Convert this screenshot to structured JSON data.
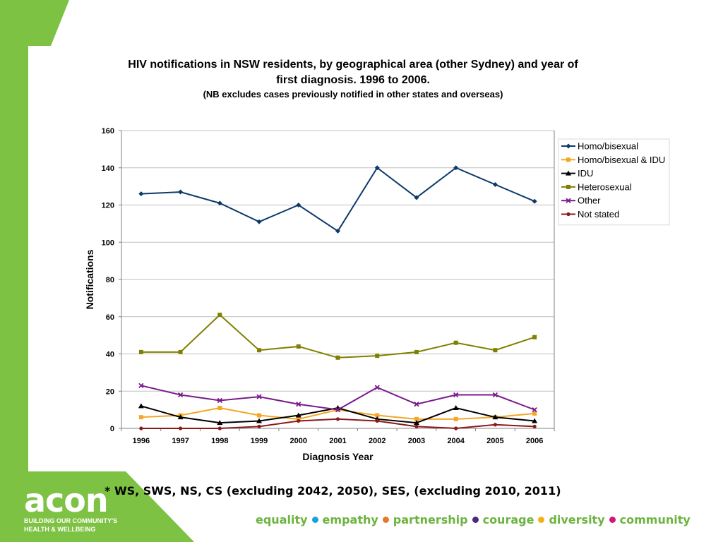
{
  "slide": {
    "title_line1": "HIV notifications in NSW residents, by geographical area (other Sydney) and year of",
    "title_line2": "first diagnosis. 1996 to 2006.",
    "subtitle": "(NB excludes cases previously notified in other states and overseas)",
    "footnote": "* WS, SWS, NS, CS (excluding 2042, 2050), SES, (excluding 2010, 2011)",
    "logo_text": "acon",
    "logo_tagline1": "BUILDING OUR COMMUNITY'S",
    "logo_tagline2": "HEALTH & WELLBEING",
    "values": [
      {
        "word": "equality",
        "dot_color": "#1aa3d9"
      },
      {
        "word": "empathy",
        "dot_color": "#e8772e"
      },
      {
        "word": "partnership",
        "dot_color": "#4b2a7b"
      },
      {
        "word": "courage",
        "dot_color": "#f2b11b"
      },
      {
        "word": "diversity",
        "dot_color": "#d4147a"
      },
      {
        "word": "community",
        "dot_color": null
      }
    ],
    "values_text_color": "#6cb33f",
    "brand_green": "#7dc242"
  },
  "chart_data": {
    "type": "line",
    "xlabel": "Diagnosis Year",
    "ylabel": "Notifications",
    "ylim": [
      0,
      160
    ],
    "yticks": [
      0,
      20,
      40,
      60,
      80,
      100,
      120,
      140,
      160
    ],
    "grid": true,
    "legend_position": "right",
    "categories": [
      "1996",
      "1997",
      "1998",
      "1999",
      "2000",
      "2001",
      "2002",
      "2003",
      "2004",
      "2005",
      "2006"
    ],
    "series": [
      {
        "name": "Homo/bisexual",
        "color": "#0d3a6b",
        "marker": "diamond",
        "values": [
          126,
          127,
          121,
          111,
          120,
          106,
          140,
          124,
          140,
          131,
          122
        ]
      },
      {
        "name": "Homo/bisexual & IDU",
        "color": "#f5a623",
        "marker": "square",
        "values": [
          6,
          7,
          11,
          7,
          5,
          10,
          7,
          5,
          5,
          6,
          8
        ]
      },
      {
        "name": "IDU",
        "color": "#000000",
        "marker": "triangle",
        "values": [
          12,
          6,
          3,
          4,
          7,
          11,
          5,
          3,
          11,
          6,
          4
        ]
      },
      {
        "name": "Heterosexual",
        "color": "#808000",
        "marker": "square",
        "values": [
          41,
          41,
          61,
          42,
          44,
          38,
          39,
          41,
          46,
          42,
          49
        ]
      },
      {
        "name": "Other",
        "color": "#7a1a8c",
        "marker": "x",
        "values": [
          23,
          18,
          15,
          17,
          13,
          10,
          22,
          13,
          18,
          18,
          10
        ]
      },
      {
        "name": "Not stated",
        "color": "#8b1a1a",
        "marker": "circle",
        "values": [
          0,
          0,
          0,
          1,
          4,
          5,
          4,
          1,
          0,
          2,
          1
        ]
      }
    ]
  }
}
